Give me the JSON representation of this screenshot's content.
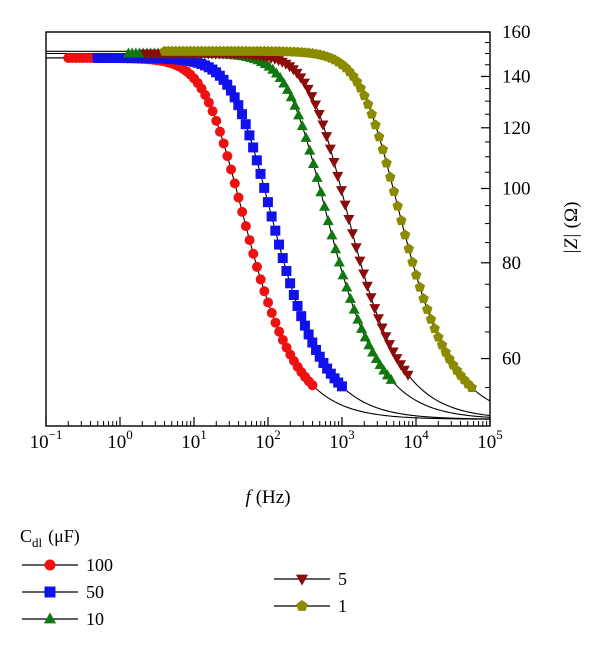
{
  "chart_data": {
    "type": "scatter",
    "title": "",
    "xlabel": {
      "symbol": "f",
      "unit": "(Hz)"
    },
    "ylabel": {
      "symbol": "|Z|",
      "unit": "(Ω)"
    },
    "x_scale": "log",
    "y_scale": "log",
    "xlim": [
      0.1,
      100000
    ],
    "ylim": [
      49,
      160
    ],
    "x_ticks": [
      {
        "base": "10",
        "exp": "−1",
        "value": 0.1
      },
      {
        "base": "10",
        "exp": "0",
        "value": 1
      },
      {
        "base": "10",
        "exp": "1",
        "value": 10
      },
      {
        "base": "10",
        "exp": "2",
        "value": 100
      },
      {
        "base": "10",
        "exp": "3",
        "value": 1000
      },
      {
        "base": "10",
        "exp": "4",
        "value": 10000
      },
      {
        "base": "10",
        "exp": "5",
        "value": 100000
      }
    ],
    "y_ticks": [
      {
        "value": 60,
        "label": "60"
      },
      {
        "value": 80,
        "label": "80"
      },
      {
        "value": 100,
        "label": "100"
      },
      {
        "value": 120,
        "label": "120"
      },
      {
        "value": 140,
        "label": "140"
      },
      {
        "value": 160,
        "label": "160"
      }
    ],
    "y_axis_side": "right",
    "grid": false,
    "legend": {
      "title_main": "C",
      "title_sub": "dl",
      "title_unit": "(μF)",
      "placement": "below",
      "columns": 2
    },
    "model": {
      "R_low": 150,
      "R_high": 50
    },
    "series": [
      {
        "name": "100",
        "marker": "circle",
        "color": "#ee1111",
        "fc": 22,
        "R_low": 148,
        "x_range": [
          0.2,
          400
        ]
      },
      {
        "name": "50",
        "marker": "square",
        "color": "#1111ee",
        "fc": 53,
        "R_low": 148,
        "x_range": [
          0.5,
          1000
        ]
      },
      {
        "name": "10",
        "marker": "triangle-up",
        "color": "#117711",
        "fc": 290,
        "R_low": 150,
        "x_range": [
          1.3,
          5000
        ]
      },
      {
        "name": "5",
        "marker": "triangle-down",
        "color": "#8b0b0b",
        "fc": 560,
        "R_low": 150,
        "x_range": [
          2.2,
          8000
        ]
      },
      {
        "name": "1",
        "marker": "pentagon",
        "color": "#8b8b00",
        "fc": 2800,
        "R_low": 151,
        "x_range": [
          4,
          60000
        ]
      }
    ]
  }
}
